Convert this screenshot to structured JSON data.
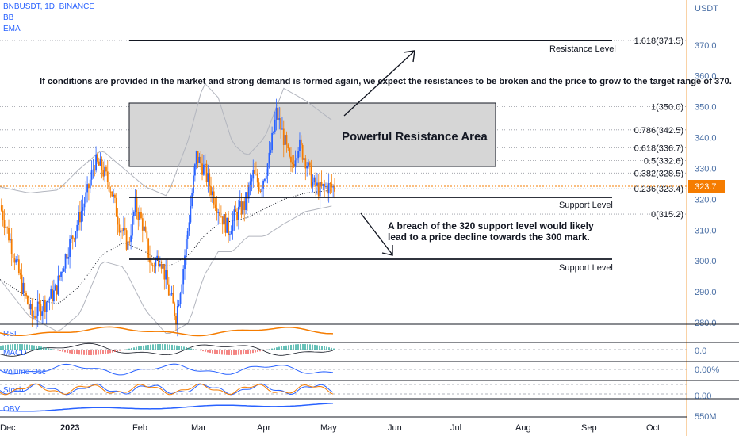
{
  "header": {
    "symbol": "BNBUSDT, 1D, BINANCE",
    "indicator1": "BB",
    "indicator2": "EMA",
    "currency": "USDT"
  },
  "colors": {
    "bull": "#2962ff",
    "bear": "#f57c00",
    "bb": "#b2b5be",
    "zone_fill": "#d6d6d6",
    "current_price_bg": "#f57c00",
    "axis_text": "#4a6fa5",
    "rsi_line": "#f57c00",
    "obv_line": "#2962ff"
  },
  "annotations": {
    "top_note": "If conditions are provided in the market and strong demand is formed again, we expect the resistances to be broken and the price to grow to the target range of 370.",
    "zone_label": "Powerful Resistance Area",
    "bottom_note_line1": "A breach of the 320 support level would likely",
    "bottom_note_line2": "lead to a price decline towards the 300 mark.",
    "resistance_label": "Resistance Level",
    "support_label_1": "Support Level",
    "support_label_2": "Support Level"
  },
  "fib_labels": [
    "1.618(371.5)",
    "1(350.0)",
    "0.786(342.5)",
    "0.618(336.7)",
    "0.5(332.6)",
    "0.382(328.5)",
    "0.236(323.4)",
    "0(315.2)"
  ],
  "current_price": "323.7",
  "panes": {
    "rsi": "RSI",
    "macd": "MACD",
    "volume_osc": "Volume Osc",
    "stoch": "Stoch",
    "obv": "OBV",
    "macd_value": "0.0",
    "volume_osc_value": "0.00%",
    "stoch_value": "0.00",
    "obv_value": "550M"
  },
  "chart_data": {
    "type": "candlestick",
    "y_ticks": [
      "370.0",
      "360.0",
      "350.0",
      "340.0",
      "330.0",
      "320.0",
      "310.0",
      "300.0",
      "290.0",
      "280.0"
    ],
    "y_tick_values": [
      370,
      360,
      350,
      340,
      330,
      320,
      310,
      300,
      290,
      280
    ],
    "x_ticks": [
      "Dec",
      "2023",
      "Feb",
      "Mar",
      "Apr",
      "May",
      "Jun",
      "Jul",
      "Aug",
      "Sep",
      "Oct"
    ],
    "fib_levels": [
      371.5,
      350.0,
      342.5,
      336.7,
      332.6,
      328.5,
      323.4,
      315.2
    ],
    "resistance_level": 371.5,
    "support_levels": [
      320,
      300
    ],
    "resistance_zone": [
      330,
      350
    ],
    "price_path": [
      [
        0,
        318
      ],
      [
        8,
        305
      ],
      [
        15,
        292
      ],
      [
        22,
        282
      ],
      [
        30,
        286
      ],
      [
        38,
        290
      ],
      [
        46,
        303
      ],
      [
        53,
        312
      ],
      [
        60,
        322
      ],
      [
        65,
        332
      ],
      [
        70,
        330
      ],
      [
        76,
        324
      ],
      [
        82,
        312
      ],
      [
        88,
        305
      ],
      [
        93,
        318
      ],
      [
        98,
        312
      ],
      [
        104,
        298
      ],
      [
        110,
        302
      ],
      [
        116,
        290
      ],
      [
        121,
        282
      ],
      [
        126,
        298
      ],
      [
        131,
        318
      ],
      [
        135,
        334
      ],
      [
        140,
        330
      ],
      [
        146,
        322
      ],
      [
        152,
        315
      ],
      [
        157,
        310
      ],
      [
        162,
        315
      ],
      [
        168,
        318
      ],
      [
        174,
        328
      ],
      [
        179,
        324
      ],
      [
        185,
        333
      ],
      [
        190,
        348
      ],
      [
        195,
        340
      ],
      [
        200,
        330
      ],
      [
        205,
        338
      ],
      [
        210,
        333
      ],
      [
        215,
        325
      ],
      [
        220,
        323
      ],
      [
        225,
        324
      ],
      [
        230,
        323.7
      ]
    ],
    "bb_upper": [
      [
        0,
        324
      ],
      [
        20,
        322
      ],
      [
        40,
        323
      ],
      [
        55,
        330
      ],
      [
        70,
        336
      ],
      [
        85,
        330
      ],
      [
        100,
        324
      ],
      [
        115,
        321
      ],
      [
        130,
        340
      ],
      [
        140,
        358
      ],
      [
        150,
        353
      ],
      [
        160,
        338
      ],
      [
        170,
        334
      ],
      [
        182,
        340
      ],
      [
        195,
        356
      ],
      [
        210,
        352
      ],
      [
        230,
        345
      ]
    ],
    "bb_lower": [
      [
        0,
        294
      ],
      [
        20,
        282
      ],
      [
        40,
        277
      ],
      [
        55,
        283
      ],
      [
        70,
        300
      ],
      [
        85,
        298
      ],
      [
        100,
        284
      ],
      [
        115,
        276
      ],
      [
        130,
        280
      ],
      [
        140,
        295
      ],
      [
        150,
        303
      ],
      [
        160,
        303
      ],
      [
        170,
        308
      ],
      [
        182,
        308
      ],
      [
        195,
        312
      ],
      [
        210,
        316
      ],
      [
        230,
        318
      ]
    ],
    "ema": [
      [
        0,
        294
      ],
      [
        20,
        288
      ],
      [
        40,
        286
      ],
      [
        55,
        292
      ],
      [
        70,
        302
      ],
      [
        85,
        306
      ],
      [
        100,
        303
      ],
      [
        115,
        298
      ],
      [
        130,
        302
      ],
      [
        140,
        308
      ],
      [
        150,
        312
      ],
      [
        160,
        313
      ],
      [
        170,
        314
      ],
      [
        182,
        317
      ],
      [
        195,
        320
      ],
      [
        210,
        322
      ],
      [
        230,
        323
      ]
    ]
  }
}
